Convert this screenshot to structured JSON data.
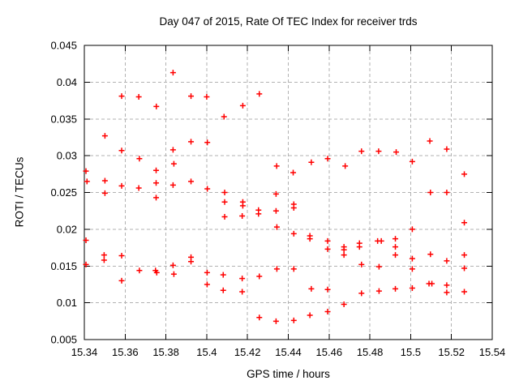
{
  "chart_data": {
    "type": "scatter",
    "title": "Day 047 of 2015, Rate Of TEC Index for receiver trds",
    "xlabel": "GPS time / hours",
    "ylabel": "ROTI / TECUs",
    "xlim": [
      15.34,
      15.54
    ],
    "ylim": [
      0.005,
      0.045
    ],
    "xticks": {
      "values": [
        15.34,
        15.36,
        15.38,
        15.4,
        15.42,
        15.44,
        15.46,
        15.48,
        15.5,
        15.52,
        15.54
      ],
      "labels": [
        "15.34",
        "15.36",
        "15.38",
        "15.4",
        "15.42",
        "15.44",
        "15.46",
        "15.48",
        "15.5",
        "15.52",
        "15.54"
      ]
    },
    "yticks": {
      "values": [
        0.005,
        0.01,
        0.015,
        0.02,
        0.025,
        0.03,
        0.035,
        0.04,
        0.045
      ],
      "labels": [
        "0.005",
        "0.01",
        "0.015",
        "0.02",
        "0.025",
        "0.03",
        "0.035",
        "0.04",
        "0.045"
      ]
    },
    "grid": true,
    "legend_position": "none",
    "marker": {
      "shape": "plus",
      "color": "#ff0000",
      "size": 7
    },
    "grid_color": "#b2b2b2",
    "axis_color": "#000000",
    "series": [
      {
        "name": "ROTI",
        "points": [
          [
            15.3835,
            0.0413
          ],
          [
            15.3583,
            0.0381
          ],
          [
            15.3667,
            0.038
          ],
          [
            15.3753,
            0.0367
          ],
          [
            15.3923,
            0.0381
          ],
          [
            15.4,
            0.038
          ],
          [
            15.4085,
            0.0353
          ],
          [
            15.4258,
            0.0384
          ],
          [
            15.4177,
            0.0368
          ],
          [
            15.3501,
            0.0327
          ],
          [
            15.3583,
            0.0307
          ],
          [
            15.367,
            0.0296
          ],
          [
            15.3835,
            0.0308
          ],
          [
            15.3839,
            0.0289
          ],
          [
            15.3923,
            0.0319
          ],
          [
            15.4003,
            0.0318
          ],
          [
            15.3752,
            0.028
          ],
          [
            15.3408,
            0.0279
          ],
          [
            15.3413,
            0.0265
          ],
          [
            15.3501,
            0.0266
          ],
          [
            15.3583,
            0.0259
          ],
          [
            15.3667,
            0.0256
          ],
          [
            15.3752,
            0.0263
          ],
          [
            15.3835,
            0.026
          ],
          [
            15.3923,
            0.0265
          ],
          [
            15.4003,
            0.0255
          ],
          [
            15.3501,
            0.0249
          ],
          [
            15.3752,
            0.0243
          ],
          [
            15.4343,
            0.0286
          ],
          [
            15.4424,
            0.0277
          ],
          [
            15.4513,
            0.0291
          ],
          [
            15.4593,
            0.0296
          ],
          [
            15.4679,
            0.0286
          ],
          [
            15.4759,
            0.0306
          ],
          [
            15.4843,
            0.0306
          ],
          [
            15.4929,
            0.0305
          ],
          [
            15.5008,
            0.0292
          ],
          [
            15.5094,
            0.032
          ],
          [
            15.5177,
            0.0309
          ],
          [
            15.5263,
            0.0275
          ],
          [
            15.4088,
            0.025
          ],
          [
            15.4088,
            0.0237
          ],
          [
            15.4088,
            0.0217
          ],
          [
            15.4177,
            0.0237
          ],
          [
            15.4177,
            0.0232
          ],
          [
            15.4174,
            0.0218
          ],
          [
            15.4254,
            0.0226
          ],
          [
            15.4254,
            0.0221
          ],
          [
            15.434,
            0.0248
          ],
          [
            15.434,
            0.0225
          ],
          [
            15.4344,
            0.0203
          ],
          [
            15.4427,
            0.0234
          ],
          [
            15.4427,
            0.0229
          ],
          [
            15.5097,
            0.025
          ],
          [
            15.5177,
            0.025
          ],
          [
            15.5263,
            0.0209
          ],
          [
            15.5008,
            0.02
          ],
          [
            15.4427,
            0.0194
          ],
          [
            15.4506,
            0.0191
          ],
          [
            15.4506,
            0.0187
          ],
          [
            15.4593,
            0.0184
          ],
          [
            15.4593,
            0.0173
          ],
          [
            15.4673,
            0.0176
          ],
          [
            15.4673,
            0.0172
          ],
          [
            15.4673,
            0.0165
          ],
          [
            15.4749,
            0.0181
          ],
          [
            15.4749,
            0.0176
          ],
          [
            15.4838,
            0.0184
          ],
          [
            15.4856,
            0.0184
          ],
          [
            15.4925,
            0.0187
          ],
          [
            15.4925,
            0.0176
          ],
          [
            15.4925,
            0.0165
          ],
          [
            15.5008,
            0.016
          ],
          [
            15.5097,
            0.0166
          ],
          [
            15.5177,
            0.0157
          ],
          [
            15.5263,
            0.0165
          ],
          [
            15.3408,
            0.0185
          ],
          [
            15.3497,
            0.0165
          ],
          [
            15.3497,
            0.0158
          ],
          [
            15.3583,
            0.0164
          ],
          [
            15.3408,
            0.0152
          ],
          [
            15.367,
            0.0144
          ],
          [
            15.3749,
            0.0144
          ],
          [
            15.3755,
            0.0141
          ],
          [
            15.3835,
            0.0151
          ],
          [
            15.3839,
            0.0139
          ],
          [
            15.3923,
            0.0162
          ],
          [
            15.3923,
            0.0156
          ],
          [
            15.3583,
            0.013
          ],
          [
            15.4002,
            0.0141
          ],
          [
            15.4002,
            0.0125
          ],
          [
            15.4081,
            0.0138
          ],
          [
            15.4174,
            0.0133
          ],
          [
            15.4258,
            0.0136
          ],
          [
            15.4081,
            0.0117
          ],
          [
            15.4174,
            0.0115
          ],
          [
            15.4759,
            0.0152
          ],
          [
            15.4845,
            0.0149
          ],
          [
            15.5008,
            0.0146
          ],
          [
            15.5263,
            0.0147
          ],
          [
            15.4759,
            0.0113
          ],
          [
            15.4845,
            0.0116
          ],
          [
            15.4925,
            0.0119
          ],
          [
            15.5008,
            0.012
          ],
          [
            15.509,
            0.0126
          ],
          [
            15.5104,
            0.0126
          ],
          [
            15.5177,
            0.0124
          ],
          [
            15.5177,
            0.0114
          ],
          [
            15.5263,
            0.0115
          ],
          [
            15.4344,
            0.0146
          ],
          [
            15.4427,
            0.0146
          ],
          [
            15.4513,
            0.0119
          ],
          [
            15.4593,
            0.0118
          ],
          [
            15.4673,
            0.0098
          ],
          [
            15.4593,
            0.0088
          ],
          [
            15.4506,
            0.0083
          ],
          [
            15.4427,
            0.0076
          ],
          [
            15.434,
            0.0075
          ],
          [
            15.4258,
            0.008
          ]
        ]
      }
    ]
  }
}
